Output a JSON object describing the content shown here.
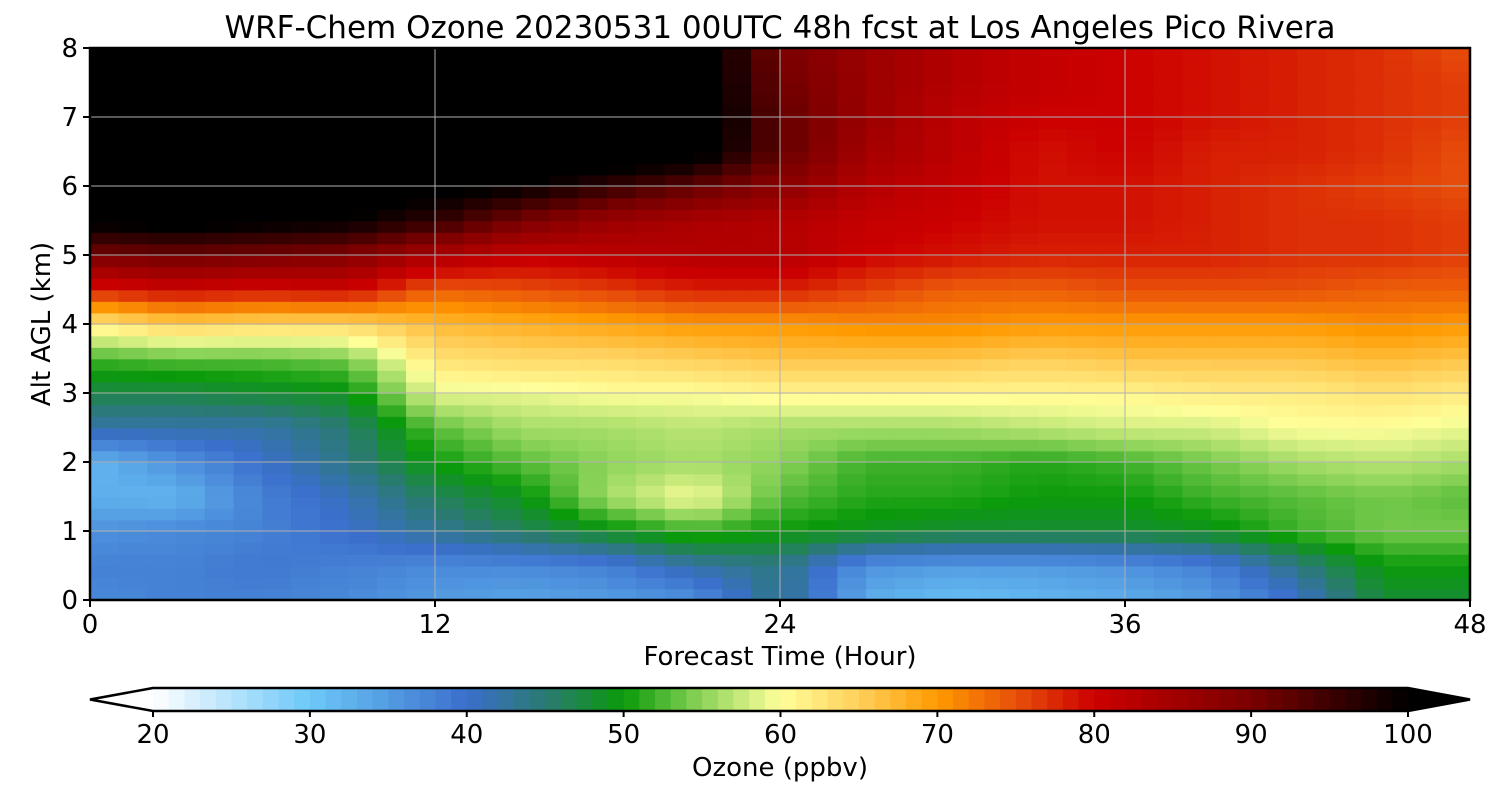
{
  "chart_data": {
    "type": "heatmap",
    "title": "WRF-Chem Ozone  20230531 00UTC 48h fcst at Los Angeles Pico Rivera",
    "xlabel": "Forecast Time (Hour)",
    "ylabel": "Alt AGL (km)",
    "xlim": [
      0,
      48
    ],
    "ylim": [
      0,
      8
    ],
    "x_ticks": [
      0,
      12,
      24,
      36,
      48
    ],
    "y_ticks": [
      0,
      1,
      2,
      3,
      4,
      5,
      6,
      7,
      8
    ],
    "grid": true,
    "x": [
      0,
      3,
      6,
      9,
      12,
      15,
      18,
      21,
      24,
      27,
      30,
      33,
      36,
      39,
      42,
      45,
      48
    ],
    "y": [
      0,
      0.5,
      1,
      1.5,
      2,
      2.5,
      3,
      3.5,
      4,
      4.5,
      5,
      5.5,
      6,
      6.5,
      7,
      7.5,
      8
    ],
    "z": [
      [
        37,
        38,
        38,
        37,
        35,
        34,
        35,
        36,
        44,
        33,
        31,
        32,
        33,
        35,
        40,
        48,
        48
      ],
      [
        38,
        38,
        39,
        38,
        37,
        37,
        38,
        42,
        44,
        36,
        35,
        35,
        36,
        38,
        44,
        50,
        50
      ],
      [
        36,
        37,
        38,
        40,
        43,
        46,
        49,
        52,
        50,
        49,
        48,
        48,
        48,
        49,
        52,
        54,
        54
      ],
      [
        33,
        32,
        38,
        41,
        46,
        49,
        56,
        60,
        53,
        51,
        51,
        50,
        50,
        52,
        53,
        54,
        53
      ],
      [
        32,
        36,
        40,
        44,
        50,
        53,
        55,
        56,
        55,
        52,
        52,
        51,
        52,
        54,
        56,
        57,
        56
      ],
      [
        42,
        42,
        42,
        45,
        53,
        56,
        56,
        57,
        56,
        56,
        56,
        57,
        58,
        58,
        60,
        60,
        59
      ],
      [
        47,
        47,
        48,
        49,
        59,
        59,
        60,
        60,
        61,
        61,
        61,
        61,
        61,
        62,
        62,
        63,
        62
      ],
      [
        52,
        53,
        53,
        54,
        63,
        64,
        64,
        65,
        66,
        66,
        66,
        65,
        66,
        66,
        66,
        67,
        66
      ],
      [
        62,
        65,
        64,
        64,
        67,
        68,
        69,
        70,
        70,
        71,
        71,
        70,
        70,
        70,
        70,
        71,
        70
      ],
      [
        78,
        80,
        79,
        80,
        74,
        75,
        76,
        78,
        78,
        76,
        74,
        74,
        75,
        75,
        75,
        74,
        74
      ],
      [
        90,
        91,
        90,
        89,
        84,
        81,
        82,
        83,
        83,
        80,
        79,
        78,
        78,
        78,
        77,
        77,
        76
      ],
      [
        101,
        102,
        101,
        100,
        96,
        90,
        86,
        84,
        83,
        81,
        80,
        79,
        79,
        78,
        77,
        77,
        76
      ],
      [
        103,
        103,
        102,
        102,
        102,
        100,
        96,
        92,
        88,
        83,
        81,
        79,
        79,
        78,
        77,
        76,
        75
      ],
      [
        104,
        104,
        104,
        104,
        104,
        104,
        104,
        103,
        92,
        85,
        82,
        79,
        80,
        78,
        78,
        77,
        75
      ],
      [
        104,
        104,
        104,
        104,
        104,
        104,
        104,
        104,
        92,
        86,
        82,
        80,
        80,
        79,
        78,
        77,
        76
      ],
      [
        104,
        104,
        104,
        104,
        104,
        104,
        104,
        104,
        91,
        86,
        83,
        81,
        80,
        79,
        78,
        77,
        76
      ],
      [
        104,
        104,
        104,
        104,
        104,
        104,
        104,
        104,
        90,
        86,
        83,
        81,
        80,
        79,
        78,
        77,
        75
      ]
    ],
    "colorbar": {
      "label": "Ozone  (ppbv)",
      "min": 20,
      "max": 100,
      "ticks": [
        20,
        30,
        40,
        50,
        60,
        70,
        80,
        90,
        100
      ],
      "extend": "both",
      "stops": [
        {
          "value": 20,
          "color": "#ffffff"
        },
        {
          "value": 30,
          "color": "#6cc8f8"
        },
        {
          "value": 40,
          "color": "#3b6fcc"
        },
        {
          "value": 45,
          "color": "#2a7a72"
        },
        {
          "value": 50,
          "color": "#0a9a0a"
        },
        {
          "value": 55,
          "color": "#8ed45a"
        },
        {
          "value": 60,
          "color": "#ffff9a"
        },
        {
          "value": 65,
          "color": "#ffcf5a"
        },
        {
          "value": 70,
          "color": "#ff9a00"
        },
        {
          "value": 75,
          "color": "#e8500a"
        },
        {
          "value": 80,
          "color": "#cc0000"
        },
        {
          "value": 90,
          "color": "#7a0000"
        },
        {
          "value": 100,
          "color": "#000000"
        }
      ],
      "under_color": "#ffffff",
      "over_color": "#000000"
    }
  }
}
